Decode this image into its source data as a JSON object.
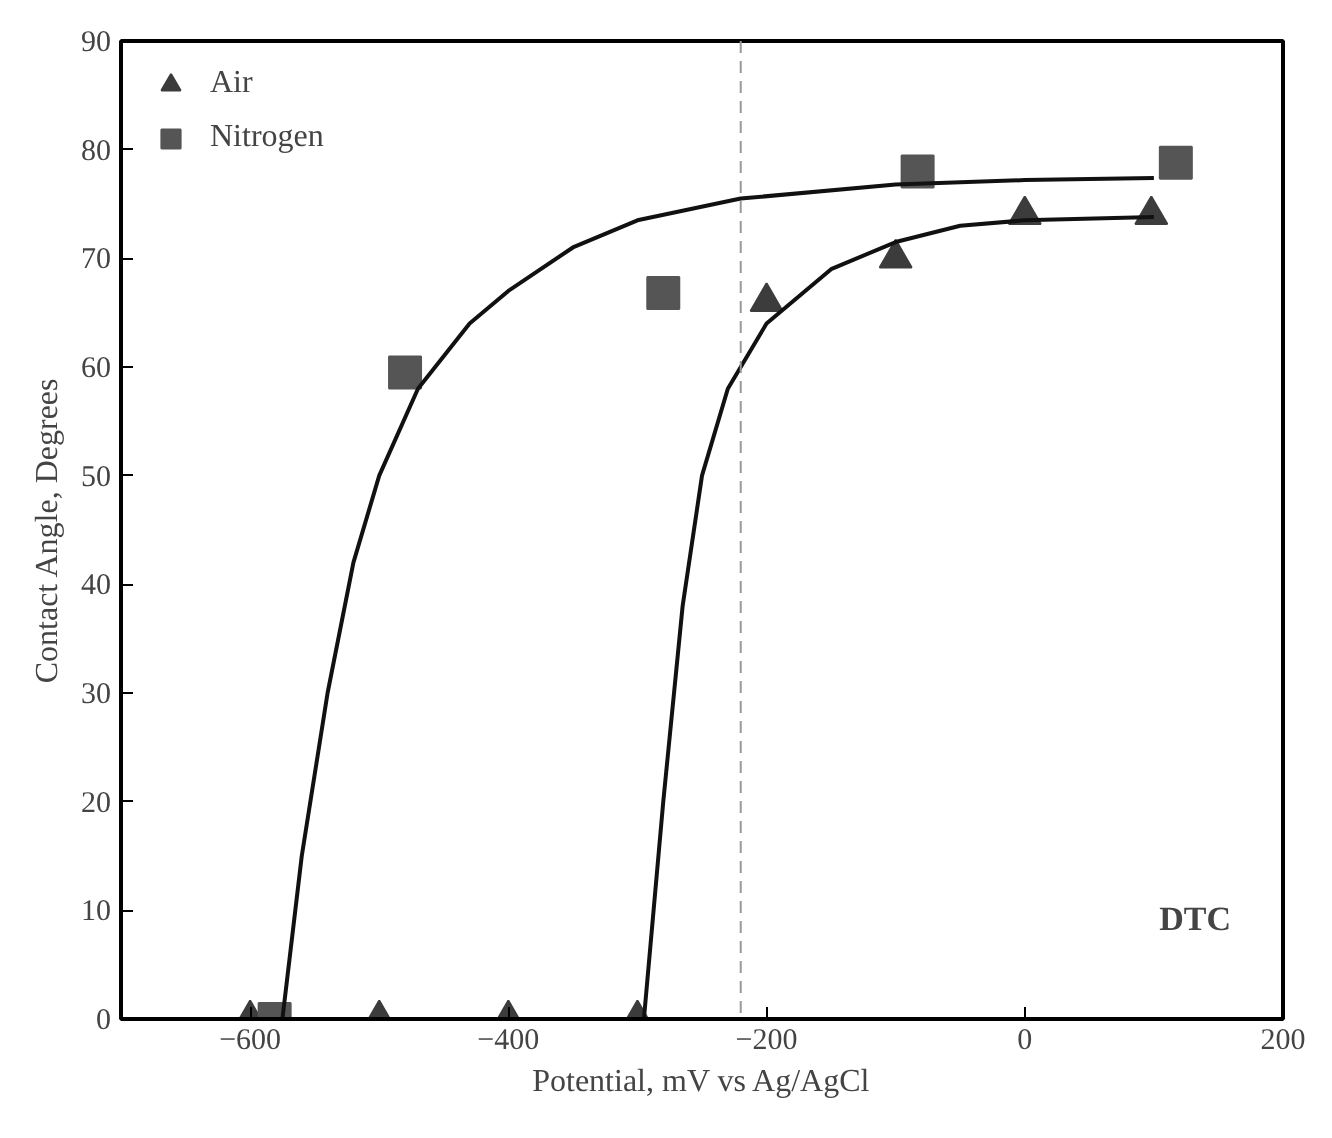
{
  "chart_data": {
    "type": "scatter",
    "xlabel": "Potential, mV vs Ag/AgCl",
    "ylabel": "Contact Angle, Degrees",
    "series": [
      {
        "name": "Air",
        "marker": "triangle",
        "color": "#3c3c3c",
        "x": [
          -600,
          -500,
          -400,
          -300,
          -200,
          -100,
          0,
          98
        ],
        "values": [
          0,
          0,
          0,
          0,
          66,
          70,
          74,
          74
        ]
      },
      {
        "name": "Nitrogen",
        "marker": "square",
        "color": "#555555",
        "x": [
          -581,
          -480,
          -280,
          -83,
          117
        ],
        "values": [
          0,
          59.5,
          66.8,
          78,
          78.8
        ]
      },
      {
        "type": "line",
        "color": "#111111",
        "x": [
          -575,
          -560,
          -540,
          -520,
          -500,
          -470,
          -430,
          -400,
          -350,
          -300,
          -220,
          -100,
          0,
          100
        ],
        "values": [
          0,
          15,
          30,
          42,
          50,
          58,
          64,
          67,
          71,
          73.5,
          75.5,
          76.8,
          77.2,
          77.4
        ]
      },
      {
        "type": "line",
        "color": "#111111",
        "x": [
          -295,
          -280,
          -265,
          -250,
          -230,
          -200,
          -150,
          -100,
          -50,
          0,
          100
        ],
        "values": [
          0,
          20,
          38,
          50,
          58,
          64,
          69,
          71.5,
          73,
          73.5,
          73.8
        ]
      }
    ],
    "ref_lines": [
      {
        "axis": "x",
        "value": -220,
        "color": "#999999",
        "line_style": "dashed"
      }
    ],
    "annotations": [
      "DTC"
    ],
    "xlim": [
      -700,
      200
    ],
    "xticks": [
      -600,
      -400,
      -200,
      0,
      200
    ],
    "ylim": [
      0,
      90
    ],
    "yticks": [
      0,
      10,
      20,
      30,
      40,
      50,
      60,
      70,
      80,
      90
    ],
    "grid": false,
    "legend": "top left"
  }
}
